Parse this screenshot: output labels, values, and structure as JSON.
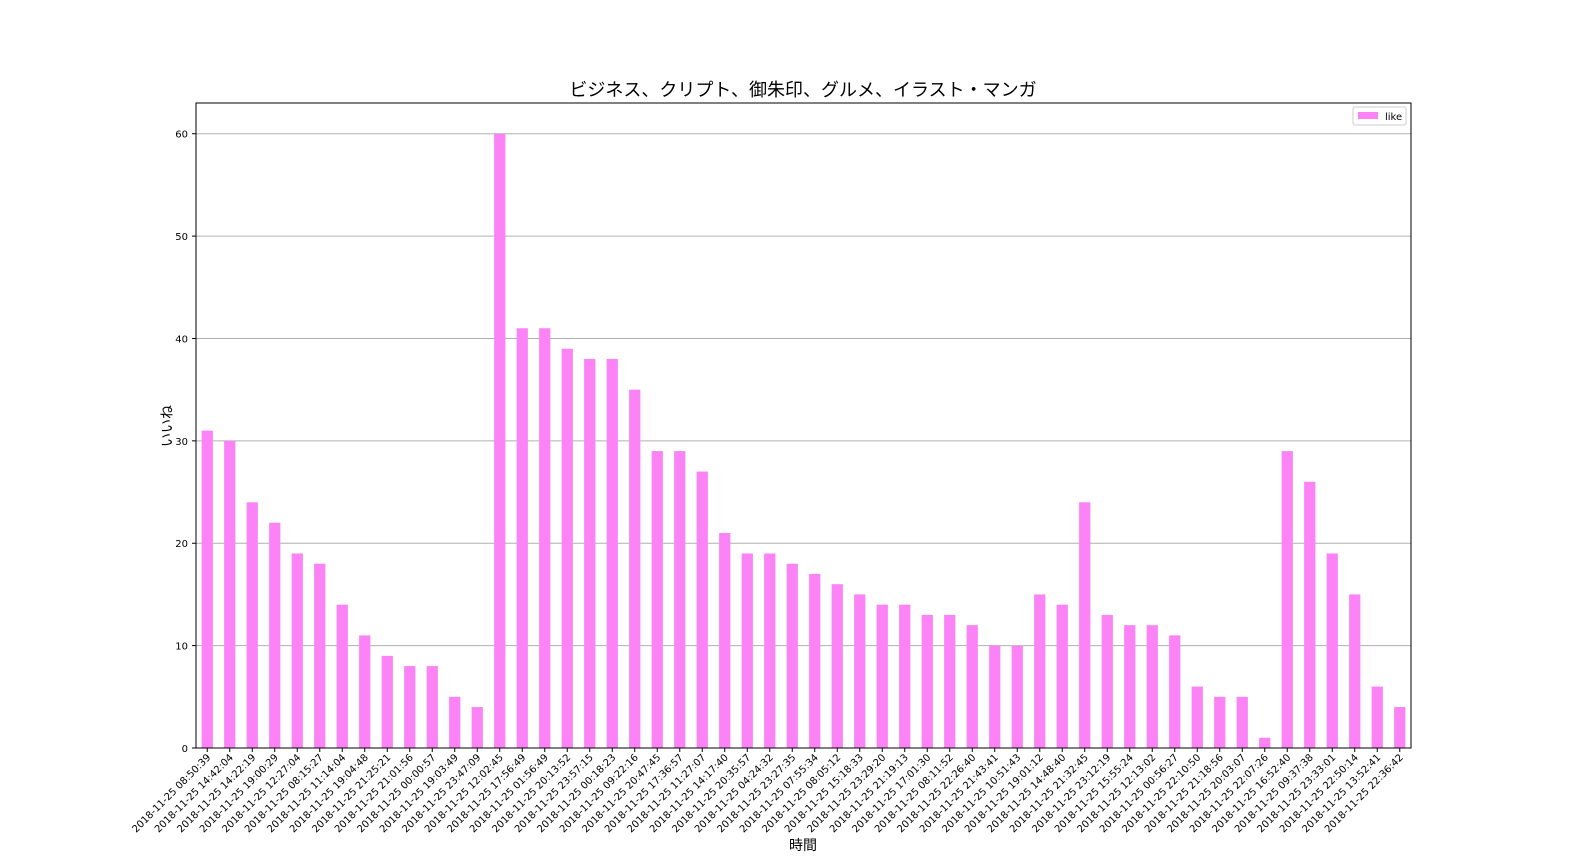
{
  "chart_data": {
    "type": "bar",
    "title": "ビジネス、クリプト、御朱印、グルメ、イラスト・マンガ",
    "x_label": "時間",
    "y_label": "いいね",
    "categories": [
      "2018-11-25 08:50:39",
      "2018-11-25 14:42:04",
      "2018-11-25 14:22:19",
      "2018-11-25 19:00:29",
      "2018-11-25 12:27:04",
      "2018-11-25 08:15:27",
      "2018-11-25 11:14:04",
      "2018-11-25 19:04:48",
      "2018-11-25 21:25:21",
      "2018-11-25 21:01:56",
      "2018-11-25 00:00:57",
      "2018-11-25 19:03:49",
      "2018-11-25 23:47:09",
      "2018-11-25 12:02:45",
      "2018-11-25 17:56:49",
      "2018-11-25 01:56:49",
      "2018-11-25 20:13:52",
      "2018-11-25 23:57:15",
      "2018-11-25 00:18:23",
      "2018-11-25 09:22:16",
      "2018-11-25 20:47:45",
      "2018-11-25 17:36:57",
      "2018-11-25 11:27:07",
      "2018-11-25 14:17:40",
      "2018-11-25 20:35:57",
      "2018-11-25 04:24:32",
      "2018-11-25 23:27:35",
      "2018-11-25 07:55:34",
      "2018-11-25 08:05:12",
      "2018-11-25 15:18:33",
      "2018-11-25 23:29:20",
      "2018-11-25 21:19:13",
      "2018-11-25 17:01:30",
      "2018-11-25 08:11:52",
      "2018-11-25 22:26:40",
      "2018-11-25 21:43:41",
      "2018-11-25 10:51:43",
      "2018-11-25 19:01:12",
      "2018-11-25 14:48:40",
      "2018-11-25 21:32:45",
      "2018-11-25 23:12:19",
      "2018-11-25 15:55:24",
      "2018-11-25 12:13:02",
      "2018-11-25 00:56:27",
      "2018-11-25 22:10:50",
      "2018-11-25 21:18:56",
      "2018-11-25 20:03:07",
      "2018-11-25 22:07:26",
      "2018-11-25 16:52:40",
      "2018-11-25 09:37:38",
      "2018-11-25 23:33:01",
      "2018-11-25 22:50:14",
      "2018-11-25 13:52:41",
      "2018-11-25 22:36:42"
    ],
    "series": [
      {
        "name": "like",
        "color": "#fb83f6",
        "values": [
          31,
          30,
          24,
          22,
          19,
          18,
          14,
          11,
          9,
          8,
          8,
          5,
          4,
          60,
          41,
          41,
          39,
          38,
          38,
          35,
          29,
          29,
          27,
          21,
          19,
          19,
          18,
          17,
          16,
          15,
          14,
          14,
          13,
          13,
          12,
          10,
          10,
          15,
          14,
          24,
          13,
          12,
          12,
          11,
          6,
          5,
          5,
          1,
          29,
          26,
          19,
          15,
          6,
          4
        ]
      }
    ],
    "ylim": [
      0,
      63
    ],
    "yticks": [
      0,
      10,
      20,
      30,
      40,
      50,
      60
    ],
    "grid": true,
    "legend": "upper right"
  }
}
